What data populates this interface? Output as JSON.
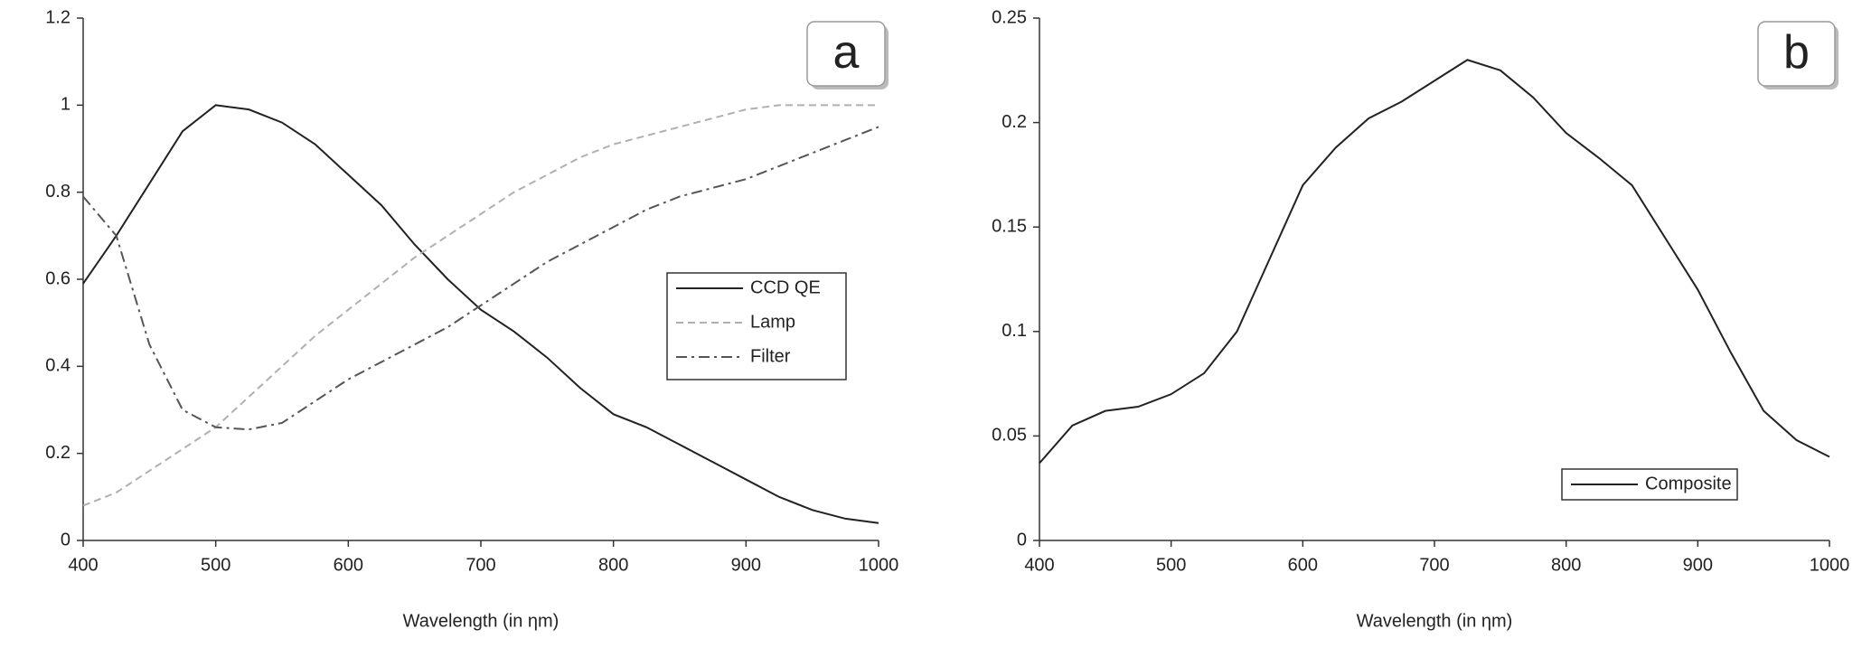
{
  "chart_data": [
    {
      "type": "line",
      "xlabel": "Wavelength (in ηm)",
      "annotation": "a",
      "x": [
        400,
        425,
        450,
        475,
        500,
        525,
        550,
        575,
        600,
        625,
        650,
        675,
        700,
        725,
        750,
        775,
        800,
        825,
        850,
        875,
        900,
        925,
        950,
        975,
        1000
      ],
      "series": [
        {
          "name": "CCD QE",
          "color": "#222222",
          "dash": "solid",
          "values": [
            0.59,
            0.7,
            0.82,
            0.94,
            1.0,
            0.99,
            0.96,
            0.91,
            0.84,
            0.77,
            0.68,
            0.6,
            0.53,
            0.48,
            0.42,
            0.35,
            0.29,
            0.26,
            0.22,
            0.18,
            0.14,
            0.1,
            0.07,
            0.05,
            0.04
          ]
        },
        {
          "name": "Lamp",
          "color": "#b0b0b0",
          "dash": "dashed",
          "values": [
            0.08,
            0.11,
            0.16,
            0.21,
            0.26,
            0.33,
            0.4,
            0.47,
            0.53,
            0.59,
            0.65,
            0.7,
            0.75,
            0.8,
            0.84,
            0.88,
            0.91,
            0.93,
            0.95,
            0.97,
            0.99,
            1.0,
            1.0,
            1.0,
            1.0
          ]
        },
        {
          "name": "Filter",
          "color": "#555555",
          "dash": "dashdot",
          "values": [
            0.79,
            0.7,
            0.45,
            0.3,
            0.26,
            0.255,
            0.27,
            0.32,
            0.37,
            0.41,
            0.45,
            0.49,
            0.54,
            0.59,
            0.64,
            0.68,
            0.72,
            0.76,
            0.79,
            0.81,
            0.83,
            0.86,
            0.89,
            0.92,
            0.95
          ]
        }
      ],
      "xlim": [
        400,
        1000
      ],
      "xticks": [
        400,
        500,
        600,
        700,
        800,
        900,
        1000
      ],
      "ylim": [
        0,
        1.2
      ],
      "yticks": [
        0,
        0.2,
        0.4,
        0.6,
        0.8,
        1,
        1.2
      ],
      "grid": false,
      "legend": "right"
    },
    {
      "type": "line",
      "xlabel": "Wavelength (in ηm)",
      "annotation": "b",
      "x": [
        400,
        425,
        450,
        475,
        500,
        525,
        550,
        575,
        600,
        625,
        650,
        675,
        700,
        725,
        750,
        775,
        800,
        825,
        850,
        875,
        900,
        925,
        950,
        975,
        1000
      ],
      "series": [
        {
          "name": "Composite",
          "color": "#222222",
          "dash": "solid",
          "values": [
            0.037,
            0.055,
            0.062,
            0.064,
            0.07,
            0.08,
            0.1,
            0.135,
            0.17,
            0.188,
            0.202,
            0.21,
            0.22,
            0.23,
            0.225,
            0.212,
            0.195,
            0.183,
            0.17,
            0.145,
            0.12,
            0.09,
            0.062,
            0.048,
            0.04
          ]
        }
      ],
      "xlim": [
        400,
        1000
      ],
      "xticks": [
        400,
        500,
        600,
        700,
        800,
        900,
        1000
      ],
      "ylim": [
        0,
        0.25
      ],
      "yticks": [
        0,
        0.05,
        0.1,
        0.15,
        0.2,
        0.25
      ],
      "grid": false,
      "legend": "lower right"
    }
  ]
}
